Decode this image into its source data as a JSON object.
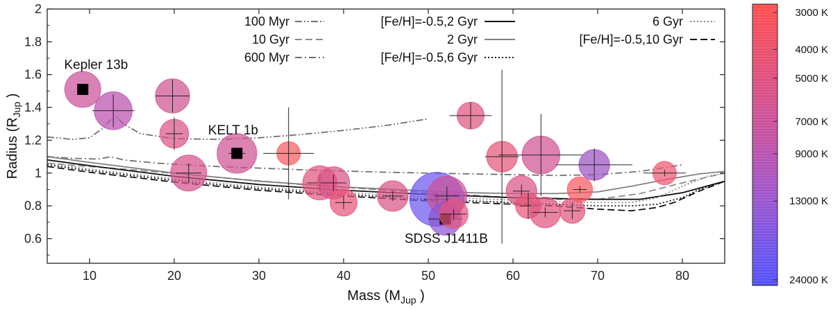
{
  "chart_data": {
    "type": "scatter",
    "title": "",
    "xlabel": "Mass (M",
    "xlabel_sub": "Jup",
    "ylabel": "Radius (R",
    "ylabel_sub": "Jup",
    "xlim": [
      5,
      85
    ],
    "ylim": [
      0.45,
      2.0
    ],
    "x_ticks": [
      10,
      20,
      30,
      40,
      50,
      60,
      70,
      80
    ],
    "y_ticks": [
      0.6,
      0.8,
      1,
      1.2,
      1.4,
      1.6,
      1.8,
      2
    ],
    "y_tick_labels": [
      "0.6",
      "0.8",
      "1",
      "1.2",
      "1.4",
      "1.6",
      "1.8",
      "2"
    ],
    "grid": false,
    "legend_position": "top",
    "legend": [
      {
        "label": "100 Myr",
        "style": "dashdotdot",
        "color": "#707070"
      },
      {
        "label": "10 Gyr",
        "style": "dashed",
        "color": "#8a8a8a"
      },
      {
        "label": "600 Myr",
        "style": "dashdot",
        "color": "#707070"
      },
      {
        "label": "[Fe/H]=-0.5,2 Gyr",
        "style": "solid",
        "color": "#111111"
      },
      {
        "label": "2 Gyr",
        "style": "solid",
        "color": "#808080"
      },
      {
        "label": "[Fe/H]=-0.5,6 Gyr",
        "style": "dotted",
        "color": "#111111"
      },
      {
        "label": "6 Gyr",
        "style": "dotted",
        "color": "#8a8a8a"
      },
      {
        "label": "[Fe/H]=-0.5,10 Gyr",
        "style": "dashed",
        "color": "#111111"
      }
    ],
    "models": [
      {
        "name": "100 Myr",
        "x": [
          5,
          8,
          10,
          11.5,
          12.5,
          13.2,
          14,
          16,
          20,
          25,
          30,
          35,
          40,
          45,
          50
        ],
        "y": [
          1.22,
          1.205,
          1.215,
          1.27,
          1.325,
          1.34,
          1.3,
          1.24,
          1.21,
          1.205,
          1.215,
          1.235,
          1.26,
          1.29,
          1.33
        ]
      },
      {
        "name": "10 Gyr",
        "x": [
          5,
          15,
          25,
          35,
          45,
          55,
          60,
          65,
          70,
          75,
          80,
          85
        ],
        "y": [
          1.06,
          1.02,
          0.975,
          0.93,
          0.895,
          0.865,
          0.85,
          0.84,
          0.84,
          0.875,
          0.94,
          1.0
        ]
      },
      {
        "name": "600 Myr",
        "x": [
          5,
          8,
          11,
          12.5,
          14,
          18,
          25,
          35,
          45,
          55,
          60,
          65,
          70,
          75,
          80
        ],
        "y": [
          1.1,
          1.09,
          1.085,
          1.1,
          1.08,
          1.06,
          1.04,
          1.02,
          1.005,
          0.995,
          0.99,
          0.985,
          0.99,
          1.01,
          1.05
        ]
      },
      {
        "name": "[Fe/H]=-0.5,2 Gyr",
        "x": [
          5,
          10,
          20,
          30,
          40,
          50,
          55,
          60,
          65,
          70,
          75,
          80,
          85
        ],
        "y": [
          1.08,
          1.045,
          0.98,
          0.93,
          0.895,
          0.87,
          0.86,
          0.85,
          0.845,
          0.84,
          0.84,
          0.88,
          0.95
        ]
      },
      {
        "name": "2 Gyr",
        "x": [
          5,
          10,
          20,
          30,
          40,
          50,
          55,
          60,
          65,
          70,
          74,
          78,
          82,
          85
        ],
        "y": [
          1.1,
          1.065,
          1.0,
          0.95,
          0.915,
          0.89,
          0.88,
          0.875,
          0.875,
          0.885,
          0.92,
          0.96,
          0.995,
          1.01
        ]
      },
      {
        "name": "[Fe/H]=-0.5,6 Gyr",
        "x": [
          5,
          10,
          20,
          30,
          40,
          50,
          55,
          60,
          65,
          70,
          74,
          77,
          80,
          82,
          85
        ],
        "y": [
          1.05,
          1.015,
          0.955,
          0.905,
          0.87,
          0.84,
          0.83,
          0.82,
          0.81,
          0.8,
          0.8,
          0.81,
          0.85,
          0.9,
          0.95
        ]
      },
      {
        "name": "6 Gyr",
        "x": [
          5,
          10,
          20,
          30,
          40,
          50,
          55,
          60,
          65,
          70,
          74,
          77,
          80,
          83,
          85
        ],
        "y": [
          1.06,
          1.025,
          0.965,
          0.915,
          0.88,
          0.855,
          0.845,
          0.835,
          0.825,
          0.82,
          0.82,
          0.85,
          0.92,
          0.98,
          1.0
        ]
      },
      {
        "name": "[Fe/H]=-0.5,10 Gyr",
        "x": [
          5,
          10,
          20,
          30,
          40,
          50,
          55,
          60,
          65,
          70,
          74,
          77,
          79,
          82,
          85
        ],
        "y": [
          1.04,
          1.005,
          0.945,
          0.895,
          0.86,
          0.83,
          0.82,
          0.81,
          0.8,
          0.78,
          0.77,
          0.79,
          0.82,
          0.89,
          0.95
        ]
      }
    ],
    "points": [
      {
        "x": 9.2,
        "y": 1.51,
        "xerr": 0,
        "yerr": 0,
        "teff": 7000,
        "size": 1.0,
        "marker": "square"
      },
      {
        "x": 12.8,
        "y": 1.38,
        "xerr": 2.5,
        "yerr": 0.1,
        "teff": 9000,
        "size": 1.05
      },
      {
        "x": 19.8,
        "y": 1.47,
        "xerr": 2.0,
        "yerr": 0.1,
        "teff": 6500,
        "size": 0.95
      },
      {
        "x": 20.0,
        "y": 1.24,
        "xerr": 1.0,
        "yerr": 0.1,
        "teff": 5500,
        "size": 0.8
      },
      {
        "x": 21.7,
        "y": 1.0,
        "xerr": 1.5,
        "yerr": 0.06,
        "teff": 6000,
        "size": 1.0
      },
      {
        "x": 27.4,
        "y": 1.12,
        "xerr": 1.0,
        "yerr": 0.02,
        "teff": 6500,
        "size": 1.1,
        "marker": "square"
      },
      {
        "x": 33.5,
        "y": 1.12,
        "xerr": 3.0,
        "yerr": 0.28,
        "teff": 3200,
        "size": 0.65
      },
      {
        "x": 37.2,
        "y": 0.94,
        "xerr": 1.5,
        "yerr": 0.05,
        "teff": 5000,
        "size": 0.95
      },
      {
        "x": 38.8,
        "y": 0.94,
        "xerr": 1.5,
        "yerr": 0.05,
        "teff": 5500,
        "size": 0.9
      },
      {
        "x": 40.0,
        "y": 0.82,
        "xerr": 1.0,
        "yerr": 0.04,
        "teff": 4500,
        "size": 0.75
      },
      {
        "x": 45.8,
        "y": 0.86,
        "xerr": 1.2,
        "yerr": 0.03,
        "teff": 5500,
        "size": 0.85
      },
      {
        "x": 51.0,
        "y": 0.84,
        "xerr": 1.5,
        "yerr": 0.04,
        "teff": 20000,
        "size": 1.5
      },
      {
        "x": 52.2,
        "y": 0.86,
        "xerr": 1.5,
        "yerr": 0.06,
        "teff": 7000,
        "size": 1.1
      },
      {
        "x": 52.0,
        "y": 0.72,
        "xerr": 2.0,
        "yerr": 0.03,
        "teff": 14000,
        "size": 0.9,
        "marker": "square"
      },
      {
        "x": 53.0,
        "y": 0.75,
        "xerr": 1.5,
        "yerr": 0.03,
        "teff": 4800,
        "size": 0.8
      },
      {
        "x": 55.0,
        "y": 1.35,
        "xerr": 2.5,
        "yerr": 0.08,
        "teff": 5000,
        "size": 0.75
      },
      {
        "x": 58.7,
        "y": 1.1,
        "xerr": 2.0,
        "yerr": 0.53,
        "teff": 4500,
        "size": 0.85
      },
      {
        "x": 61.0,
        "y": 0.89,
        "xerr": 1.0,
        "yerr": 0.04,
        "teff": 5500,
        "size": 0.85
      },
      {
        "x": 61.8,
        "y": 0.8,
        "xerr": 1.0,
        "yerr": 0.08,
        "teff": 4500,
        "size": 0.7
      },
      {
        "x": 63.3,
        "y": 1.11,
        "xerr": 5.0,
        "yerr": 0.25,
        "teff": 6500,
        "size": 1.05
      },
      {
        "x": 63.8,
        "y": 0.76,
        "xerr": 1.5,
        "yerr": 0.03,
        "teff": 5000,
        "size": 0.85
      },
      {
        "x": 67.0,
        "y": 0.77,
        "xerr": 1.0,
        "yerr": 0.05,
        "teff": 4800,
        "size": 0.7
      },
      {
        "x": 67.9,
        "y": 0.9,
        "xerr": 0.8,
        "yerr": 0.02,
        "teff": 3300,
        "size": 0.7
      },
      {
        "x": 69.6,
        "y": 1.05,
        "xerr": 4.5,
        "yerr": 0.1,
        "teff": 12000,
        "size": 0.85
      },
      {
        "x": 77.9,
        "y": 1.0,
        "xerr": 2.5,
        "yerr": 0.02,
        "teff": 4000,
        "size": 0.65
      }
    ],
    "annotations": [
      {
        "text": "Kepler 13b",
        "x": 7.0,
        "y": 1.635
      },
      {
        "text": "KELT 1b",
        "x": 24.0,
        "y": 1.235
      },
      {
        "text": "SDSS J1411B",
        "x": 47.2,
        "y": 0.575
      }
    ],
    "colorbar": {
      "label_values": [
        3000,
        4000,
        5000,
        7000,
        9000,
        13000,
        24000
      ],
      "labels": [
        "3000 K",
        "4000 K",
        "5000 K",
        "7000 K",
        "9000 K",
        "13000 K",
        "24000 K"
      ],
      "cool_color": "#ff5a5a",
      "mid_color": "#c050a8",
      "hot_color": "#5a5aff"
    }
  }
}
